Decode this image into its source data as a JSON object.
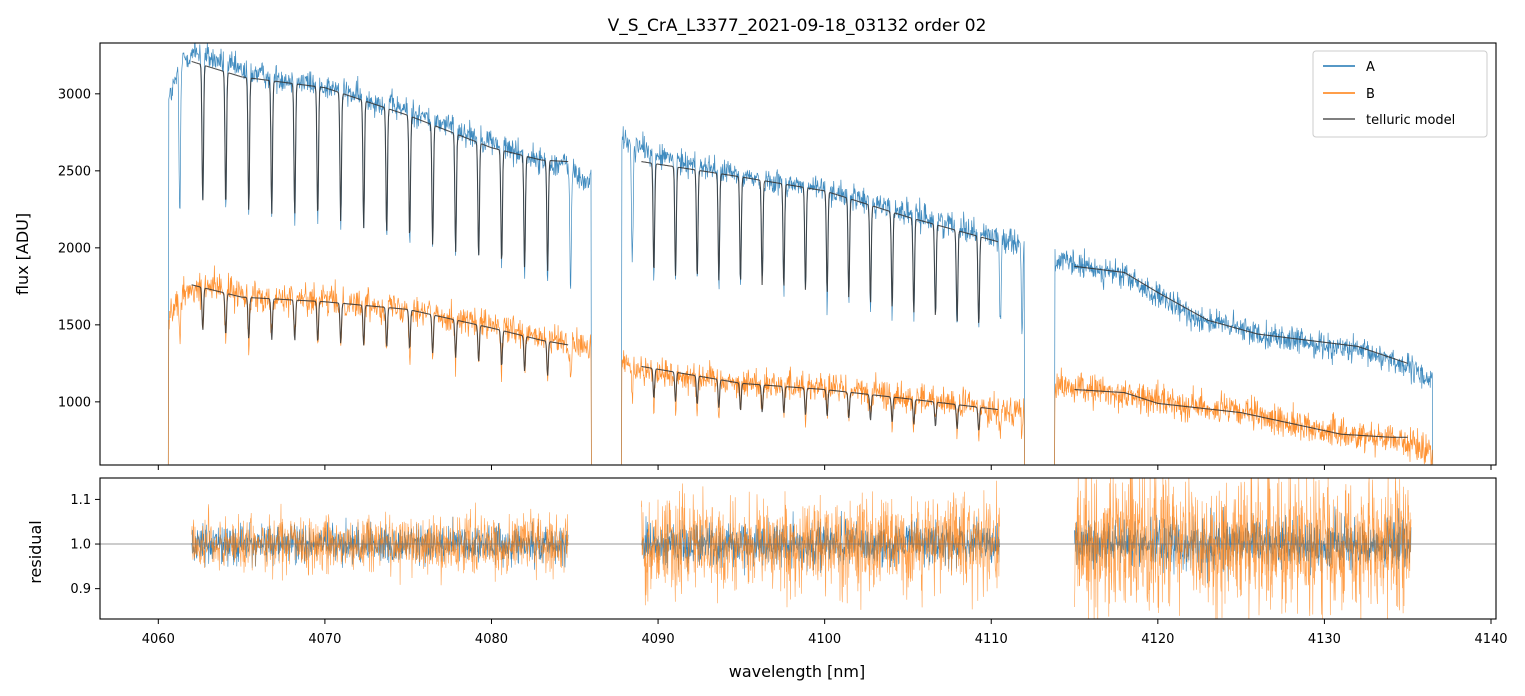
{
  "chart_data": [
    {
      "type": "line",
      "panel": "top",
      "title": "V_S_CrA_L3377_2021-09-18_03132  order 02",
      "xlabel": "",
      "ylabel": "flux [ADU]",
      "xlim": [
        4056.5,
        4140.3
      ],
      "ylim": [
        590,
        3330
      ],
      "xticks": [
        4060,
        4070,
        4080,
        4090,
        4100,
        4110,
        4120,
        4130,
        4140
      ],
      "yticks": [
        1000,
        1500,
        2000,
        2500,
        3000
      ],
      "ytick_labels": [
        "1000",
        "1500",
        "2000",
        "2500",
        "3000"
      ],
      "legend": {
        "position": "top-right",
        "entries": [
          "A",
          "B",
          "telluric model"
        ]
      },
      "segments": [
        {
          "x_start": 4060.6,
          "x_end": 4086.0,
          "line_spacing_nm": 1.38
        },
        {
          "x_start": 4087.8,
          "x_end": 4112.0,
          "line_spacing_nm": 1.3
        },
        {
          "x_start": 4113.8,
          "x_end": 4136.5,
          "line_spacing_nm": 0
        }
      ],
      "series": [
        {
          "name": "A",
          "color": "#1f77b4",
          "points": [
            [
              4060.6,
              2950
            ],
            [
              4061.5,
              3230
            ],
            [
              4062.3,
              3270
            ],
            [
              4065.0,
              3150
            ],
            [
              4070.0,
              3050
            ],
            [
              4075.0,
              2890
            ],
            [
              4080.0,
              2690
            ],
            [
              4083.0,
              2560
            ],
            [
              4084.5,
              2540
            ],
            [
              4085.6,
              2420
            ],
            [
              4087.8,
              2700
            ],
            [
              4090.0,
              2600
            ],
            [
              4095.0,
              2470
            ],
            [
              4100.0,
              2380
            ],
            [
              4105.0,
              2230
            ],
            [
              4110.0,
              2080
            ],
            [
              4111.8,
              2040
            ],
            [
              4113.8,
              1920
            ],
            [
              4115.0,
              1890
            ],
            [
              4118.0,
              1820
            ],
            [
              4120.0,
              1680
            ],
            [
              4122.0,
              1560
            ],
            [
              4125.0,
              1470
            ],
            [
              4128.0,
              1400
            ],
            [
              4131.0,
              1350
            ],
            [
              4134.0,
              1280
            ],
            [
              4136.2,
              1150
            ]
          ]
        },
        {
          "name": "B",
          "color": "#ff7f0e",
          "points": [
            [
              4060.6,
              1560
            ],
            [
              4061.5,
              1700
            ],
            [
              4063.0,
              1760
            ],
            [
              4065.0,
              1700
            ],
            [
              4070.0,
              1660
            ],
            [
              4075.0,
              1610
            ],
            [
              4080.0,
              1490
            ],
            [
              4083.0,
              1410
            ],
            [
              4085.6,
              1360
            ],
            [
              4087.8,
              1260
            ],
            [
              4090.0,
              1190
            ],
            [
              4095.0,
              1130
            ],
            [
              4100.0,
              1100
            ],
            [
              4105.0,
              1030
            ],
            [
              4110.0,
              960
            ],
            [
              4111.8,
              950
            ],
            [
              4113.8,
              1100
            ],
            [
              4116.0,
              1080
            ],
            [
              4120.0,
              1010
            ],
            [
              4125.0,
              930
            ],
            [
              4128.0,
              860
            ],
            [
              4131.0,
              790
            ],
            [
              4134.0,
              770
            ],
            [
              4136.3,
              680
            ]
          ]
        },
        {
          "name": "telluric model",
          "color": "#555555",
          "A_points": [
            [
              4062.0,
              3210
            ],
            [
              4065.0,
              3110
            ],
            [
              4070.0,
              3040
            ],
            [
              4075.0,
              2860
            ],
            [
              4080.0,
              2650
            ],
            [
              4083.0,
              2570
            ],
            [
              4084.6,
              2560
            ],
            [
              4089.0,
              2560
            ],
            [
              4095.0,
              2460
            ],
            [
              4100.0,
              2370
            ],
            [
              4105.0,
              2200
            ],
            [
              4110.4,
              2040
            ],
            [
              4115.0,
              1880
            ],
            [
              4118.0,
              1840
            ],
            [
              4120.0,
              1710
            ],
            [
              4123.0,
              1530
            ],
            [
              4126.0,
              1440
            ],
            [
              4129.0,
              1400
            ],
            [
              4132.0,
              1360
            ],
            [
              4135.0,
              1250
            ]
          ],
          "B_points": [
            [
              4062.0,
              1760
            ],
            [
              4065.0,
              1680
            ],
            [
              4070.0,
              1650
            ],
            [
              4075.0,
              1600
            ],
            [
              4080.0,
              1480
            ],
            [
              4083.0,
              1400
            ],
            [
              4084.6,
              1370
            ],
            [
              4089.0,
              1230
            ],
            [
              4095.0,
              1120
            ],
            [
              4100.0,
              1080
            ],
            [
              4105.0,
              1020
            ],
            [
              4110.4,
              950
            ],
            [
              4115.0,
              1080
            ],
            [
              4118.0,
              1060
            ],
            [
              4120.0,
              990
            ],
            [
              4125.0,
              930
            ],
            [
              4128.0,
              860
            ],
            [
              4131.0,
              790
            ],
            [
              4134.0,
              770
            ],
            [
              4135.0,
              770
            ]
          ]
        }
      ]
    },
    {
      "type": "line",
      "panel": "bottom",
      "xlabel": "wavelength [nm]",
      "ylabel": "residual",
      "xlim": [
        4056.5,
        4140.3
      ],
      "ylim": [
        0.832,
        1.148
      ],
      "xticks": [
        4060,
        4070,
        4080,
        4090,
        4100,
        4110,
        4120,
        4130,
        4140
      ],
      "xtick_labels": [
        "4060",
        "4070",
        "4080",
        "4090",
        "4100",
        "4110",
        "4120",
        "4130",
        "4140"
      ],
      "yticks": [
        0.9,
        1.0,
        1.1
      ],
      "ytick_labels": [
        "0.9",
        "1.0",
        "1.1"
      ],
      "reference_line": 1.0,
      "segments": [
        {
          "x_start": 4062.0,
          "x_end": 4084.6,
          "noise_A": 0.03,
          "noise_B": 0.045
        },
        {
          "x_start": 4089.0,
          "x_end": 4110.5,
          "noise_A": 0.035,
          "noise_B": 0.075
        },
        {
          "x_start": 4115.0,
          "x_end": 4135.2,
          "noise_A": 0.04,
          "noise_B": 0.11
        }
      ],
      "series": [
        {
          "name": "A",
          "color": "#1f77b4"
        },
        {
          "name": "B",
          "color": "#ff7f0e"
        }
      ]
    }
  ]
}
